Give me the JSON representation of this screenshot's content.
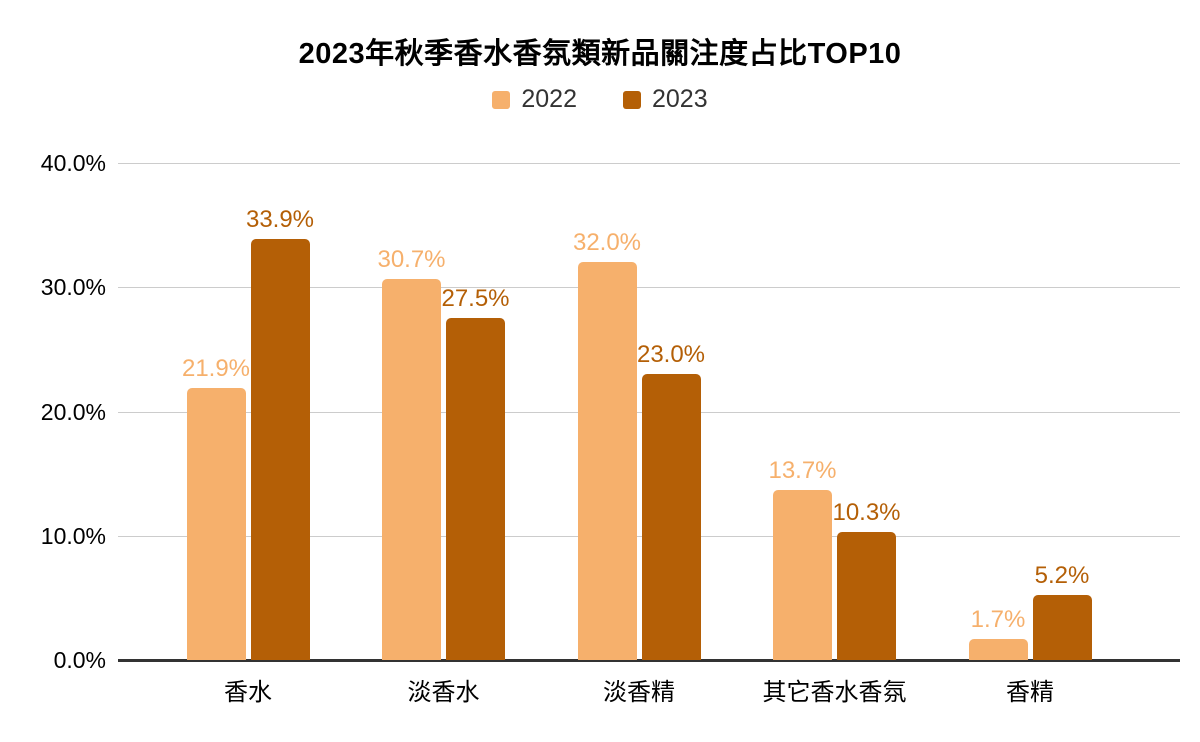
{
  "title": "2023年秋季香水香氛類新品關注度占比TOP10",
  "legend": {
    "items": [
      {
        "label": "2022",
        "color": "#f6b06c"
      },
      {
        "label": "2023",
        "color": "#b45f06"
      }
    ]
  },
  "colors": {
    "series_2022": "#f6b06c",
    "series_2023": "#b45f06",
    "gridline": "#cccccc",
    "axis": "#333333",
    "title_text": "#000000",
    "tick_text": "#000000"
  },
  "chart_data": {
    "type": "bar",
    "title": "2023年秋季香水香氛類新品關注度占比TOP10",
    "categories": [
      "香水",
      "淡香水",
      "淡香精",
      "其它香水香氛",
      "香精"
    ],
    "series": [
      {
        "name": "2022",
        "color": "#f6b06c",
        "values": [
          21.9,
          30.7,
          32.0,
          13.7,
          1.7
        ],
        "labels": [
          "21.9%",
          "30.7%",
          "32.0%",
          "13.7%",
          "1.7%"
        ]
      },
      {
        "name": "2023",
        "color": "#b45f06",
        "values": [
          33.9,
          27.5,
          23.0,
          10.3,
          5.2
        ],
        "labels": [
          "33.9%",
          "27.5%",
          "23.0%",
          "10.3%",
          "5.2%"
        ]
      }
    ],
    "xlabel": "",
    "ylabel": "",
    "ylim": [
      0,
      40
    ],
    "y_ticks": [
      {
        "value": 0,
        "label": "0.0%"
      },
      {
        "value": 10,
        "label": "10.0%"
      },
      {
        "value": 20,
        "label": "20.0%"
      },
      {
        "value": 30,
        "label": "30.0%"
      },
      {
        "value": 40,
        "label": "40.0%"
      }
    ],
    "grid": true,
    "legend_position": "top"
  }
}
